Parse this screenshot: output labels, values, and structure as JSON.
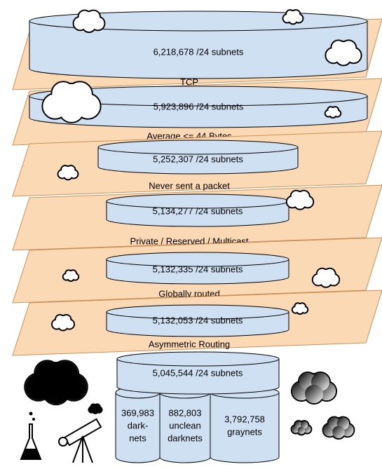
{
  "layers": [
    {
      "count": "6,218,678 /24 subnets",
      "filter": "TCP"
    },
    {
      "count": "5,923,896 /24 subnets",
      "filter": "Average <= 44 Bytes"
    },
    {
      "count": "5,252,307 /24 subnets",
      "filter": "Never sent a packet"
    },
    {
      "count": "5,134,277 /24 subnets",
      "filter": "Private / Reserved / Multicast"
    },
    {
      "count": "5,132,335 /24 subnets",
      "filter": "Globally routed"
    },
    {
      "count": "5,132,053 /24 subnets",
      "filter": "Asymmetric Routing"
    }
  ],
  "final": "5,045,544 /24 subnets",
  "splits": [
    {
      "lines": [
        "369,983",
        "dark-",
        "nets"
      ]
    },
    {
      "lines": [
        "882,803",
        "unclean",
        "darknets"
      ]
    },
    {
      "lines": [
        "3,792,758",
        "graynets"
      ]
    }
  ]
}
